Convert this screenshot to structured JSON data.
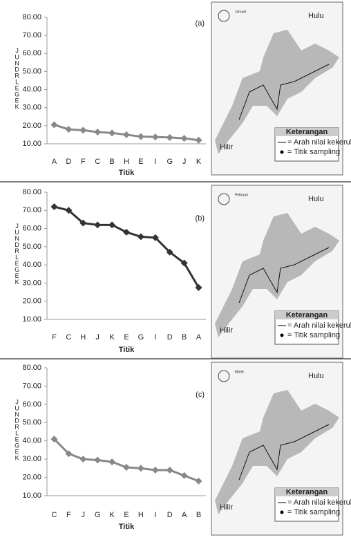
{
  "chart_data": [
    {
      "type": "line",
      "panel_label": "(a)",
      "x_label": "Titik",
      "y_label": "JUNDRLEGEK",
      "categories": [
        "A",
        "D",
        "F",
        "C",
        "B",
        "H",
        "E",
        "I",
        "G",
        "J",
        "K"
      ],
      "values": [
        20.5,
        18,
        17.5,
        16.5,
        16,
        15,
        14,
        13.8,
        13.5,
        13,
        12
      ],
      "color": "#888888",
      "ylim": [
        10,
        80
      ],
      "yticks": [
        {
          "value": 10,
          "label": "10.00"
        },
        {
          "value": 20,
          "label": "20.00"
        },
        {
          "value": 30,
          "label": "30.00"
        },
        {
          "value": 40,
          "label": "40.00"
        },
        {
          "value": 50,
          "label": "50.00"
        },
        {
          "value": 60,
          "label": "60.00"
        },
        {
          "value": 70,
          "label": "70.00"
        },
        {
          "value": 80,
          "label": "80.00"
        }
      ]
    },
    {
      "type": "line",
      "panel_label": "(b)",
      "x_label": "Titik",
      "y_label": "JUNDRLEGEK",
      "categories": [
        "F",
        "C",
        "H",
        "J",
        "K",
        "E",
        "G",
        "I",
        "D",
        "B",
        "A"
      ],
      "values": [
        72,
        70,
        63,
        62,
        62,
        58,
        55.5,
        55,
        47,
        41,
        27.5
      ],
      "color": "#333333",
      "ylim": [
        10,
        80
      ],
      "yticks": [
        {
          "value": 10,
          "label": "10.00"
        },
        {
          "value": 20,
          "label": "20.00"
        },
        {
          "value": 30,
          "label": "30.00"
        },
        {
          "value": 40,
          "label": "40.00"
        },
        {
          "value": 50,
          "label": "50.00"
        },
        {
          "value": 60,
          "label": "60.00"
        },
        {
          "value": 70,
          "label": "70.00"
        },
        {
          "value": 80,
          "label": "80.00"
        }
      ]
    },
    {
      "type": "line",
      "panel_label": "(c)",
      "x_label": "Titik",
      "y_label": "JUNDRLEGEK",
      "categories": [
        "C",
        "F",
        "J",
        "G",
        "K",
        "E",
        "H",
        "I",
        "D",
        "A",
        "B"
      ],
      "values": [
        41,
        33,
        30,
        29.5,
        28.5,
        25.5,
        25,
        24,
        24,
        21,
        18
      ],
      "color": "#888888",
      "ylim": [
        10,
        80
      ],
      "yticks": [
        {
          "value": 10,
          "label": "10.00"
        },
        {
          "value": 20,
          "label": "20.00"
        },
        {
          "value": 30,
          "label": "30.00"
        },
        {
          "value": 40,
          "label": "40.00"
        },
        {
          "value": 50,
          "label": "50.00"
        },
        {
          "value": 60,
          "label": "60.00"
        },
        {
          "value": 70,
          "label": "70.00"
        },
        {
          "value": 80,
          "label": "80.00"
        }
      ]
    }
  ],
  "maps": [
    {
      "month": "Januari",
      "upstream": "Hulu",
      "downstream": "Hilir",
      "legend_title": "Keterangan",
      "legend_items": [
        "= Arah nilai kekeruhan",
        "= Titik sampling"
      ]
    },
    {
      "month": "Pebruari",
      "upstream": "Hulu",
      "downstream": "Hilir",
      "legend_title": "Keterangan",
      "legend_items": [
        "= Arah nilai kekeruhan",
        "= Titik sampling"
      ]
    },
    {
      "month": "Maret",
      "upstream": "Hulu",
      "downstream": "Hilir",
      "legend_title": "Keterangan",
      "legend_items": [
        "= Arah nilai kekeruhan",
        "= Titik sampling"
      ]
    }
  ]
}
